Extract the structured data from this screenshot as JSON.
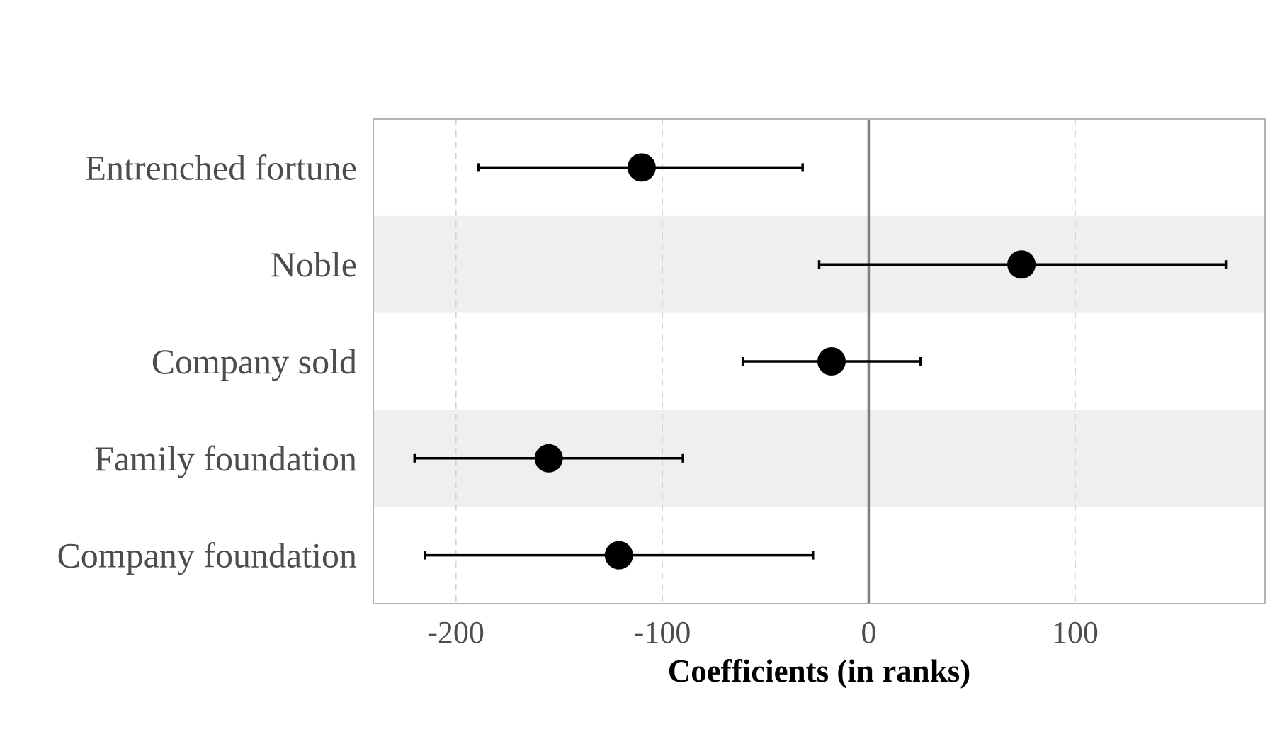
{
  "chart_data": {
    "type": "scatter",
    "subtype": "coefficient-plot",
    "title": "",
    "xlabel": "Coefficients (in ranks)",
    "ylabel": "",
    "xlim": [
      -240,
      192
    ],
    "x_ticks": [
      -200,
      -100,
      0,
      100
    ],
    "x_tick_labels": [
      "-200",
      "-100",
      "0",
      "100"
    ],
    "reference_line": 0,
    "grid": "vertical dashed",
    "legend": "none",
    "categories": [
      "Entrenched fortune",
      "Noble",
      "Company sold",
      "Family foundation",
      "Company foundation"
    ],
    "series": [
      {
        "estimates": [
          -110,
          74,
          -18,
          -155,
          -121
        ],
        "ci_low": [
          -189,
          -24,
          -61,
          -220,
          -215
        ],
        "ci_high": [
          -32,
          173,
          25,
          -90,
          -27
        ]
      }
    ],
    "colors": {
      "point": "#000000",
      "errorbar": "#000000",
      "zero_line": "#808080",
      "band": "#efefef",
      "grid": "#d3d3d3",
      "panel_border": "#b3b3b3"
    }
  }
}
